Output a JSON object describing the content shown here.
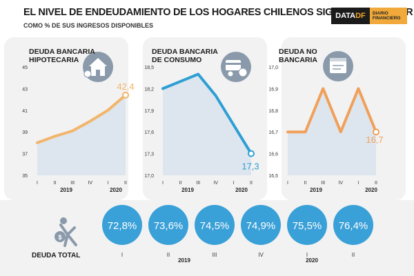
{
  "header": {
    "title": "EL NIVEL DE ENDEUDAMIENTO DE LOS HOGARES CHILENOS SIGUE SIN AFLOJAR",
    "subtitle": "COMO % DE SUS INGRESOS DISPONIBLES",
    "logo_main": "DATA",
    "logo_df": "DF",
    "logo_side_1": "DIARIO",
    "logo_side_2": "FINANCIERO"
  },
  "colors": {
    "accent": "#f0a05a",
    "blue": "#2e9fd3",
    "bubble": "#3aa0d8",
    "area": "#dde6ee"
  },
  "chart_data": [
    {
      "type": "area",
      "title_lines": [
        "DEUDA BANCARIA",
        "HIPOTECARIA"
      ],
      "color": "#f2b56b",
      "categories": [
        "I",
        "II",
        "III",
        "IV",
        "I",
        "II"
      ],
      "year_labels": [
        "2019",
        "2020"
      ],
      "values": [
        38.0,
        38.6,
        39.1,
        40.0,
        41.0,
        42.4
      ],
      "yticks": [
        "45",
        "43",
        "41",
        "39",
        "37",
        "35"
      ],
      "ylim": [
        35,
        45
      ],
      "end_label": "42,4"
    },
    {
      "type": "area",
      "title_lines": [
        "DEUDA BANCARIA",
        "DE CONSUMO"
      ],
      "color": "#2e9fd3",
      "categories": [
        "I",
        "II",
        "III",
        "IV",
        "I",
        "II"
      ],
      "year_labels": [
        "2019",
        "2020"
      ],
      "values": [
        18.2,
        18.3,
        18.4,
        18.1,
        17.7,
        17.3
      ],
      "yticks": [
        "18,5",
        "18,2",
        "17,9",
        "17,6",
        "17,3",
        "17,0"
      ],
      "ylim": [
        17.0,
        18.5
      ],
      "end_label": "17,3"
    },
    {
      "type": "area",
      "title_lines": [
        "DEUDA NO",
        "BANCARIA"
      ],
      "color": "#f0a05a",
      "categories": [
        "I",
        "II",
        "III",
        "IV",
        "I",
        "II"
      ],
      "year_labels": [
        "2019",
        "2020"
      ],
      "values": [
        16.7,
        16.7,
        16.9,
        16.7,
        16.9,
        16.7
      ],
      "yticks": [
        "17,0",
        "16,9",
        "16,8",
        "16,7",
        "16,6",
        "16,5"
      ],
      "ylim": [
        16.5,
        17.0
      ],
      "end_label": "16,7"
    },
    {
      "type": "bubbles",
      "title": "DEUDA TOTAL",
      "categories": [
        "I",
        "II",
        "III",
        "IV",
        "I",
        "II"
      ],
      "year_labels": [
        "2019",
        "2020"
      ],
      "value_labels": [
        "72,8%",
        "73,6%",
        "74,5%",
        "74,9%",
        "75,5%",
        "76,4%"
      ],
      "values": [
        72.8,
        73.6,
        74.5,
        74.9,
        75.5,
        76.4
      ]
    }
  ]
}
